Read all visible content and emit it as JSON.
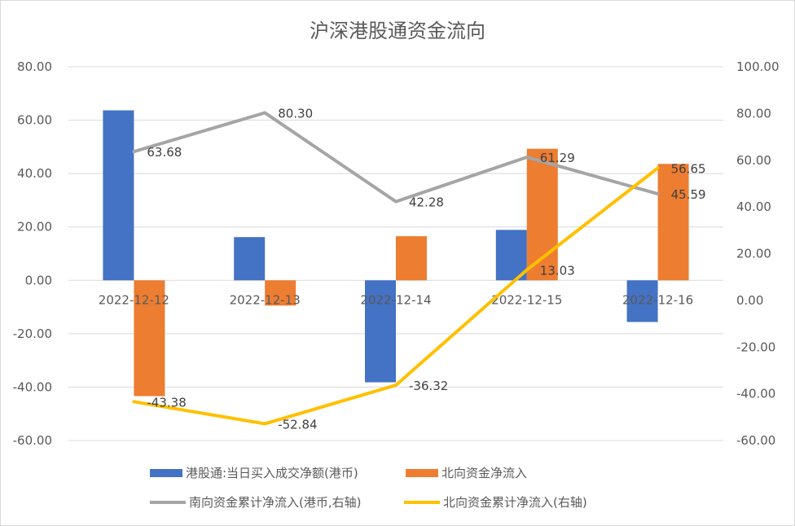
{
  "chart_data": {
    "type": "bar",
    "title": "沪深港股通资金流向",
    "categories": [
      "2022-12-12",
      "2022-12-13",
      "2022-12-14",
      "2022-12-15",
      "2022-12-16"
    ],
    "left_axis": {
      "min": -60,
      "max": 80,
      "step": 20,
      "tick_labels": [
        "80.00",
        "60.00",
        "40.00",
        "20.00",
        "0.00",
        "-20.00",
        "-40.00",
        "-60.00"
      ]
    },
    "right_axis": {
      "min": -60,
      "max": 100,
      "step": 20,
      "tick_labels": [
        "100.00",
        "80.00",
        "60.00",
        "40.00",
        "20.00",
        "0.00",
        "-20.00",
        "-40.00",
        "-60.00"
      ]
    },
    "series": [
      {
        "name": "港股通:当日买入成交净额(港币)",
        "type": "bar",
        "axis": "left",
        "color": "#4472c4",
        "values": [
          63.68,
          16.2,
          -38.2,
          18.9,
          -15.6
        ]
      },
      {
        "name": "北向资金净流入",
        "type": "bar",
        "axis": "left",
        "color": "#ed7d31",
        "values": [
          -43.38,
          -9.46,
          16.52,
          49.29,
          43.62
        ]
      },
      {
        "name": "南向资金累计净流入(港币,右轴)",
        "type": "line",
        "axis": "right",
        "color": "#a5a5a5",
        "values": [
          63.68,
          80.3,
          42.28,
          61.29,
          45.59
        ],
        "labels": [
          "63.68",
          "80.30",
          "42.28",
          "61.29",
          "45.59"
        ]
      },
      {
        "name": "北向资金累计净流入(右轴)",
        "type": "line",
        "axis": "right",
        "color": "#ffc000",
        "values": [
          -43.38,
          -52.84,
          -36.32,
          13.03,
          56.65
        ],
        "labels": [
          "-43.38",
          "-52.84",
          "-36.32",
          "13.03",
          "56.65"
        ]
      }
    ],
    "legend": {
      "position": "bottom",
      "items": [
        "港股通:当日买入成交净额(港币)",
        "北向资金净流入",
        "南向资金累计净流入(港币,右轴)",
        "北向资金累计净流入(右轴)"
      ]
    }
  }
}
